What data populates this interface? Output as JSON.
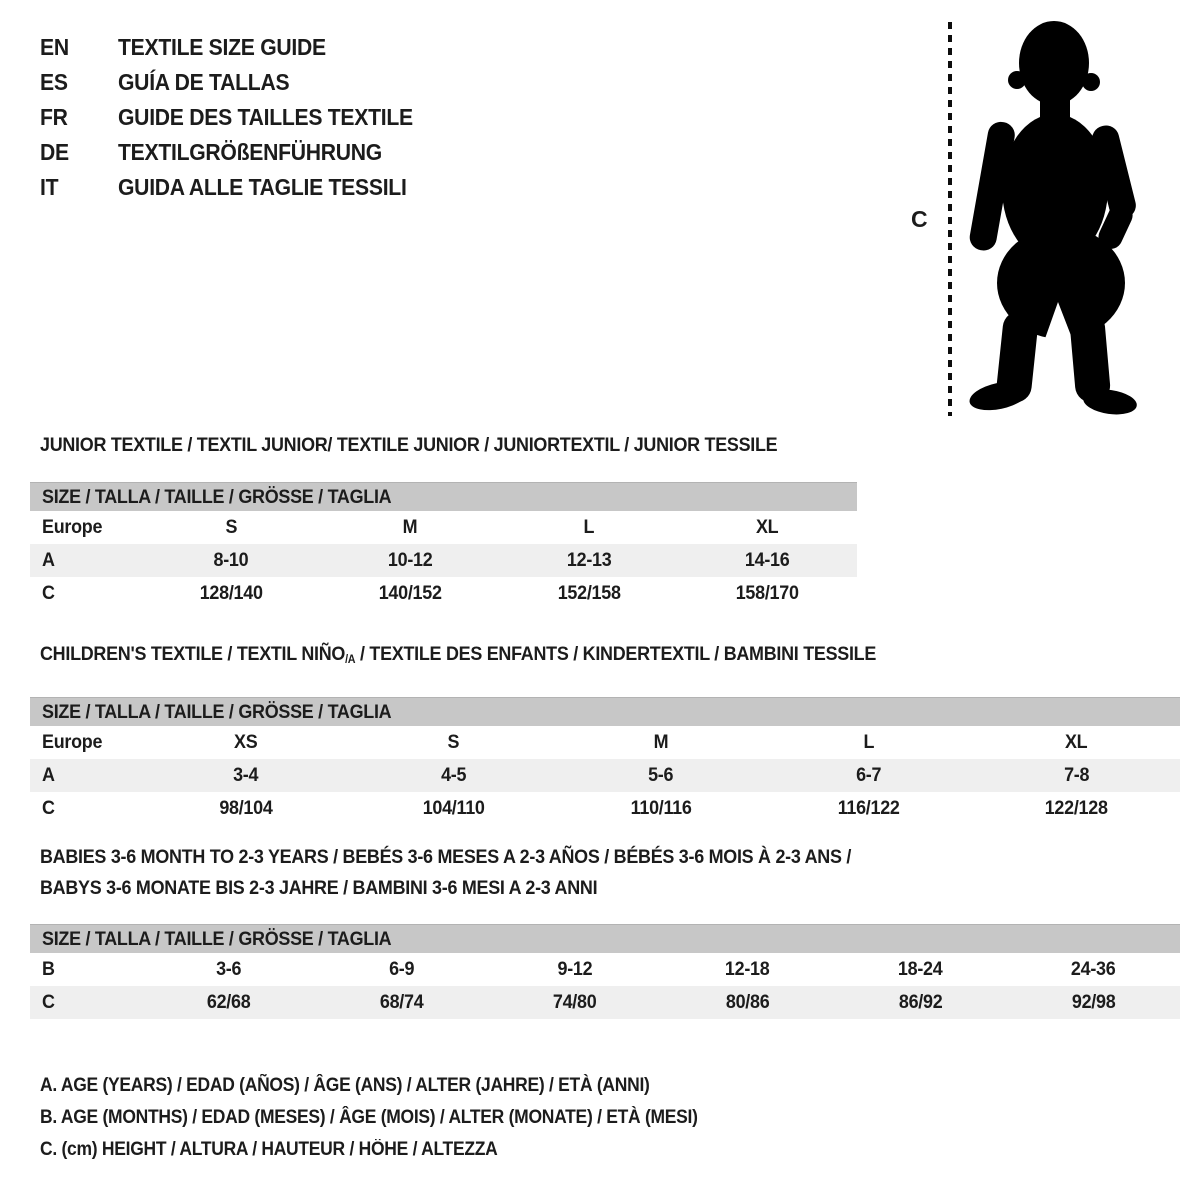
{
  "page": {
    "background": "#ffffff",
    "text_color": "#1c1c1c",
    "header_bar_color": "#c7c7c7",
    "alt_row_color": "#efefef"
  },
  "languages": [
    {
      "code": "EN",
      "label": "TEXTILE SIZE GUIDE"
    },
    {
      "code": "ES",
      "label": "GUÍA DE TALLAS"
    },
    {
      "code": "FR",
      "label": "GUIDE DES TAILLES TEXTILE"
    },
    {
      "code": "DE",
      "label": "TEXTILGRÖßENFÜHRUNG"
    },
    {
      "code": "IT",
      "label": "GUIDA ALLE TAGLIE TESSILI"
    }
  ],
  "figure": {
    "height_label": "C",
    "image": "toddler-silhouette"
  },
  "sections": [
    {
      "id": "junior",
      "title_lines": [
        [
          {
            "text": "JUNIOR TEXTILE / TEXTIL JUNIOR/ TEXTILE JUNIOR / JUNIORTEXTIL / JUNIOR TESSILE"
          }
        ]
      ],
      "size_header": "SIZE / TALLA / TAILLE / GRÖSSE / TAGLIA",
      "rows": [
        {
          "label": "Europe",
          "values": [
            "S",
            "M",
            "L",
            "XL"
          ]
        },
        {
          "label": "A",
          "values": [
            "8-10",
            "10-12",
            "12-13",
            "14-16"
          ]
        },
        {
          "label": "C",
          "values": [
            "128/140",
            "140/152",
            "152/158",
            "158/170"
          ]
        }
      ]
    },
    {
      "id": "children",
      "title_lines": [
        [
          {
            "text": "CHILDREN'S TEXTILE / TEXTIL NIÑO"
          },
          {
            "text": "/A",
            "sub": true
          },
          {
            "text": " / TEXTILE DES ENFANTS / KINDERTEXTIL / BAMBINI TESSILE"
          }
        ]
      ],
      "size_header": "SIZE / TALLA / TAILLE / GRÖSSE / TAGLIA",
      "rows": [
        {
          "label": "Europe",
          "values": [
            "XS",
            "S",
            "M",
            "L",
            "XL"
          ]
        },
        {
          "label": "A",
          "values": [
            "3-4",
            "4-5",
            "5-6",
            "6-7",
            "7-8"
          ]
        },
        {
          "label": "C",
          "values": [
            "98/104",
            "104/110",
            "110/116",
            "116/122",
            "122/128"
          ]
        }
      ]
    },
    {
      "id": "babies",
      "title_lines": [
        [
          {
            "text": "BABIES 3-6 MONTH TO 2-3 YEARS / BEBÉS 3-6 MESES A 2-3 AÑOS / BÉBÉS 3-6 MOIS À 2-3 ANS /"
          }
        ],
        [
          {
            "text": "BABYS 3-6 MONATE BIS 2-3 JAHRE / BAMBINI 3-6 MESI A 2-3 ANNI"
          }
        ]
      ],
      "size_header": "SIZE / TALLA / TAILLE / GRÖSSE / TAGLIA",
      "rows": [
        {
          "label": "B",
          "values": [
            "3-6",
            "6-9",
            "9-12",
            "12-18",
            "18-24",
            "24-36"
          ]
        },
        {
          "label": "C",
          "values": [
            "62/68",
            "68/74",
            "74/80",
            "80/86",
            "86/92",
            "92/98"
          ]
        }
      ]
    }
  ],
  "footnotes": [
    "A. AGE (YEARS) / EDAD (AÑOS) / ÂGE (ANS) / ALTER (JAHRE) / ETÀ (ANNI)",
    "B. AGE (MONTHS) / EDAD (MESES) / ÂGE (MOIS) / ALTER (MONATE) / ETÀ (MESI)",
    "C. (cm) HEIGHT / ALTURA / HAUTEUR / HÖHE / ALTEZZA"
  ]
}
